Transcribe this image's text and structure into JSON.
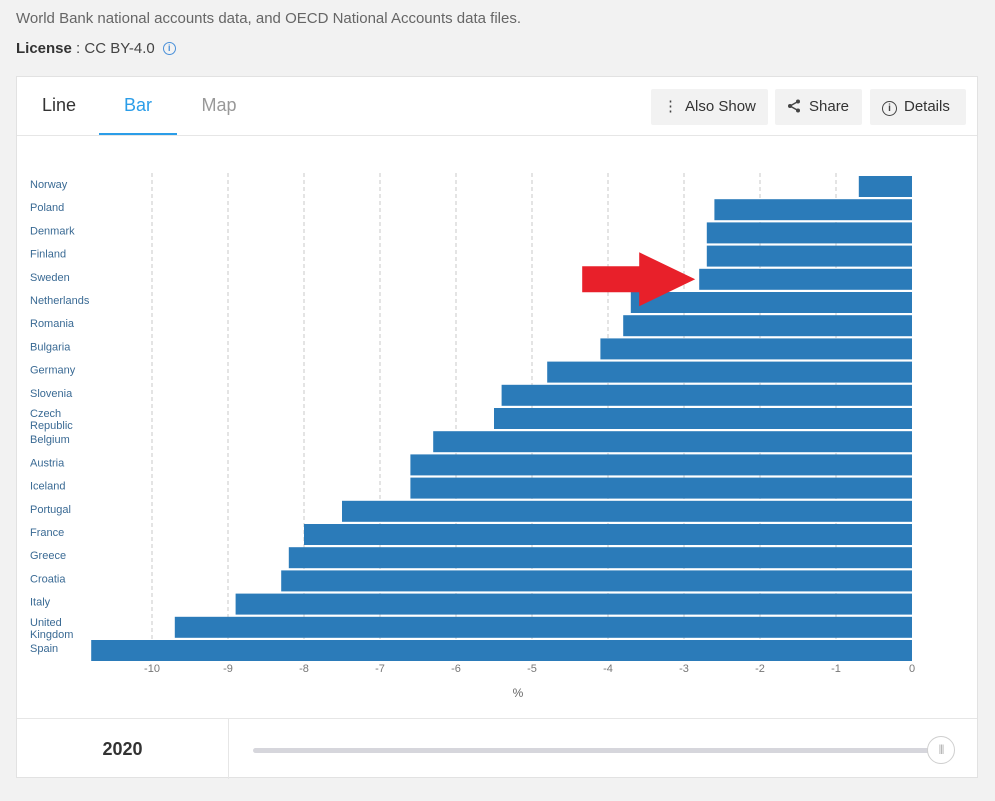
{
  "header": {
    "source_text": "World Bank national accounts data, and OECD National Accounts data files.",
    "license_label": "License",
    "license_sep": " : ",
    "license_value": "CC BY-4.0"
  },
  "tabs": [
    {
      "label": "Line"
    },
    {
      "label": "Bar"
    },
    {
      "label": "Map"
    }
  ],
  "active_tab": "Bar",
  "actions": {
    "also_show": "Also Show",
    "share": "Share",
    "details": "Details"
  },
  "icons": {
    "license_info": "info-circle-icon",
    "also_show": "vertical-dots-icon",
    "share": "share-icon",
    "details": "info-circle-icon",
    "slider": "slider-grip-icon",
    "annotation": "red-arrow-icon"
  },
  "colors": {
    "bar": "#2b7bb9",
    "accent": "#2b9de8",
    "arrow": "#e8202a"
  },
  "chart_data": {
    "type": "bar",
    "orientation": "horizontal",
    "categories": [
      "Norway",
      "Poland",
      "Denmark",
      "Finland",
      "Sweden",
      "Netherlands",
      "Romania",
      "Bulgaria",
      "Germany",
      "Slovenia",
      "Czech Republic",
      "Belgium",
      "Austria",
      "Iceland",
      "Portugal",
      "France",
      "Greece",
      "Croatia",
      "Italy",
      "United Kingdom",
      "Spain"
    ],
    "values": [
      -0.7,
      -2.6,
      -2.7,
      -2.7,
      -2.8,
      -3.7,
      -3.8,
      -4.1,
      -4.8,
      -5.4,
      -5.5,
      -6.3,
      -6.6,
      -6.6,
      -7.5,
      -8.0,
      -8.2,
      -8.3,
      -8.9,
      -9.7,
      -10.8
    ],
    "xticks": [
      -10,
      -9,
      -8,
      -7,
      -6,
      -5,
      -4,
      -3,
      -2,
      -1,
      0
    ],
    "xlim": [
      -11,
      0
    ],
    "xlabel": "%",
    "grid": true,
    "annotation": {
      "type": "arrow",
      "target": "Sweden"
    }
  },
  "slider": {
    "year": "2020",
    "position": 1.0
  }
}
